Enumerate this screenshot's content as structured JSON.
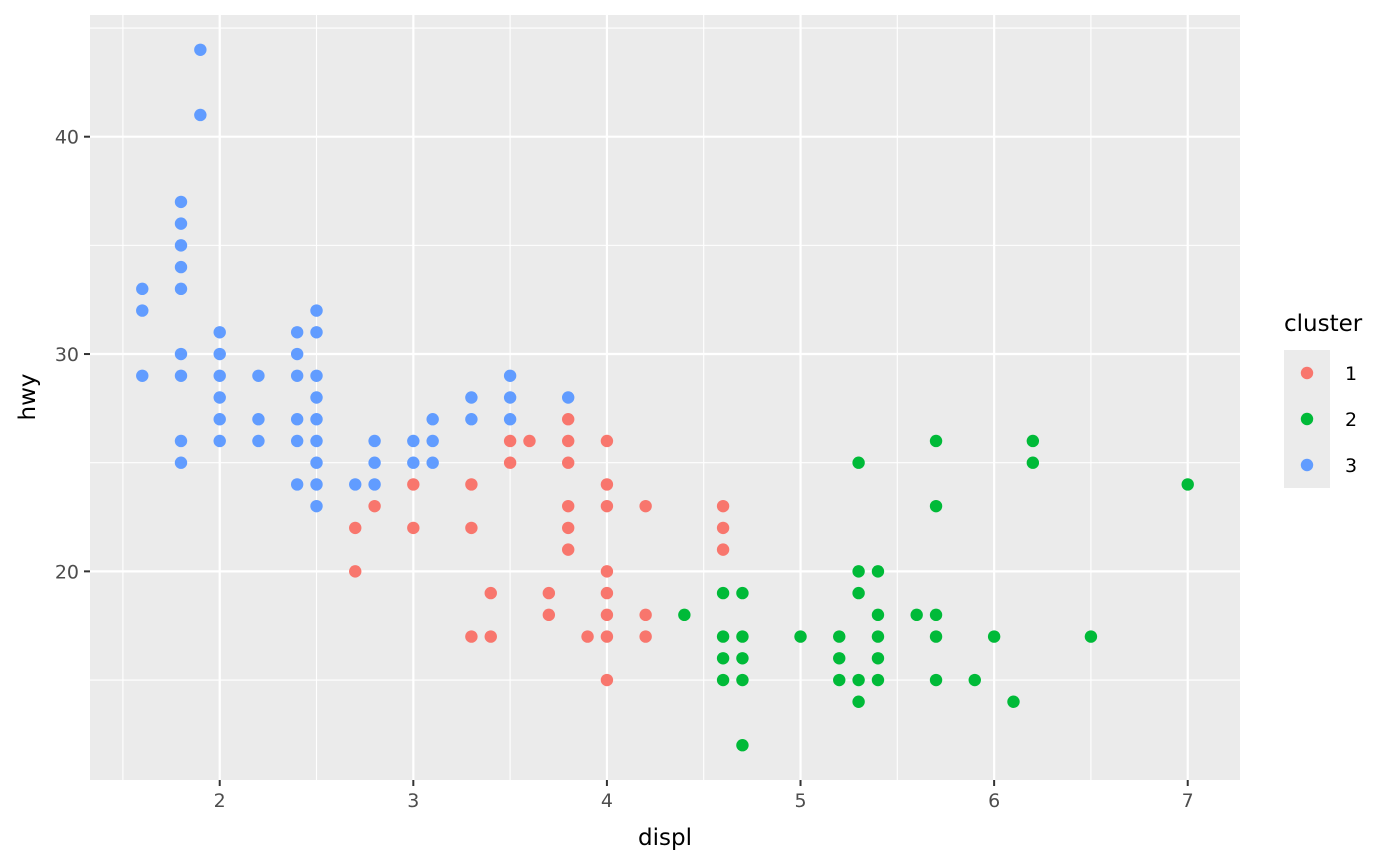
{
  "chart_data": {
    "type": "scatter",
    "title": "",
    "xlabel": "displ",
    "ylabel": "hwy",
    "xlim": [
      1.33,
      7.27
    ],
    "ylim": [
      10.4,
      45.6
    ],
    "x_ticks": [
      2,
      3,
      4,
      5,
      6,
      7
    ],
    "y_ticks": [
      20,
      30,
      40
    ],
    "grid": true,
    "legend": {
      "title": "cluster",
      "position": "right"
    },
    "series": [
      {
        "name": "1",
        "color": "#F8766D",
        "points": [
          [
            2.7,
            22
          ],
          [
            2.7,
            20
          ],
          [
            2.8,
            23
          ],
          [
            3.0,
            24
          ],
          [
            3.0,
            22
          ],
          [
            3.3,
            24
          ],
          [
            3.3,
            22
          ],
          [
            3.3,
            17
          ],
          [
            3.4,
            19
          ],
          [
            3.4,
            17
          ],
          [
            3.5,
            26
          ],
          [
            3.5,
            25
          ],
          [
            3.6,
            26
          ],
          [
            3.7,
            19
          ],
          [
            3.7,
            18
          ],
          [
            3.8,
            27
          ],
          [
            3.8,
            26
          ],
          [
            3.8,
            25
          ],
          [
            3.8,
            23
          ],
          [
            3.8,
            22
          ],
          [
            3.8,
            21
          ],
          [
            3.9,
            17
          ],
          [
            4.0,
            26
          ],
          [
            4.0,
            24
          ],
          [
            4.0,
            23
          ],
          [
            4.0,
            20
          ],
          [
            4.0,
            19
          ],
          [
            4.0,
            18
          ],
          [
            4.0,
            17
          ],
          [
            4.0,
            15
          ],
          [
            4.2,
            23
          ],
          [
            4.2,
            18
          ],
          [
            4.2,
            17
          ],
          [
            4.6,
            23
          ],
          [
            4.6,
            22
          ],
          [
            4.6,
            21
          ]
        ]
      },
      {
        "name": "2",
        "color": "#00BA38",
        "points": [
          [
            4.4,
            18
          ],
          [
            4.6,
            19
          ],
          [
            4.6,
            17
          ],
          [
            4.6,
            16
          ],
          [
            4.6,
            15
          ],
          [
            4.7,
            19
          ],
          [
            4.7,
            17
          ],
          [
            4.7,
            16
          ],
          [
            4.7,
            15
          ],
          [
            4.7,
            12
          ],
          [
            5.0,
            17
          ],
          [
            5.2,
            17
          ],
          [
            5.2,
            16
          ],
          [
            5.2,
            15
          ],
          [
            5.3,
            25
          ],
          [
            5.3,
            20
          ],
          [
            5.3,
            19
          ],
          [
            5.3,
            15
          ],
          [
            5.3,
            14
          ],
          [
            5.4,
            20
          ],
          [
            5.4,
            18
          ],
          [
            5.4,
            17
          ],
          [
            5.4,
            16
          ],
          [
            5.4,
            15
          ],
          [
            5.6,
            18
          ],
          [
            5.7,
            26
          ],
          [
            5.7,
            23
          ],
          [
            5.7,
            18
          ],
          [
            5.7,
            17
          ],
          [
            5.7,
            15
          ],
          [
            5.9,
            15
          ],
          [
            6.0,
            17
          ],
          [
            6.1,
            14
          ],
          [
            6.2,
            26
          ],
          [
            6.2,
            25
          ],
          [
            6.5,
            17
          ],
          [
            7.0,
            24
          ]
        ]
      },
      {
        "name": "3",
        "color": "#619CFF",
        "points": [
          [
            1.6,
            33
          ],
          [
            1.6,
            32
          ],
          [
            1.6,
            29
          ],
          [
            1.8,
            37
          ],
          [
            1.8,
            36
          ],
          [
            1.8,
            35
          ],
          [
            1.8,
            34
          ],
          [
            1.8,
            33
          ],
          [
            1.8,
            30
          ],
          [
            1.8,
            29
          ],
          [
            1.8,
            26
          ],
          [
            1.8,
            25
          ],
          [
            1.9,
            44
          ],
          [
            1.9,
            41
          ],
          [
            2.0,
            31
          ],
          [
            2.0,
            30
          ],
          [
            2.0,
            29
          ],
          [
            2.0,
            28
          ],
          [
            2.0,
            27
          ],
          [
            2.0,
            26
          ],
          [
            2.2,
            29
          ],
          [
            2.2,
            27
          ],
          [
            2.2,
            26
          ],
          [
            2.4,
            31
          ],
          [
            2.4,
            30
          ],
          [
            2.4,
            29
          ],
          [
            2.4,
            27
          ],
          [
            2.4,
            26
          ],
          [
            2.4,
            24
          ],
          [
            2.5,
            32
          ],
          [
            2.5,
            31
          ],
          [
            2.5,
            29
          ],
          [
            2.5,
            28
          ],
          [
            2.5,
            27
          ],
          [
            2.5,
            26
          ],
          [
            2.5,
            25
          ],
          [
            2.5,
            24
          ],
          [
            2.5,
            23
          ],
          [
            2.7,
            24
          ],
          [
            2.8,
            26
          ],
          [
            2.8,
            25
          ],
          [
            2.8,
            24
          ],
          [
            3.0,
            26
          ],
          [
            3.0,
            25
          ],
          [
            3.1,
            27
          ],
          [
            3.1,
            26
          ],
          [
            3.1,
            25
          ],
          [
            3.3,
            28
          ],
          [
            3.3,
            27
          ],
          [
            3.5,
            29
          ],
          [
            3.5,
            28
          ],
          [
            3.5,
            27
          ],
          [
            3.8,
            28
          ]
        ]
      }
    ]
  }
}
